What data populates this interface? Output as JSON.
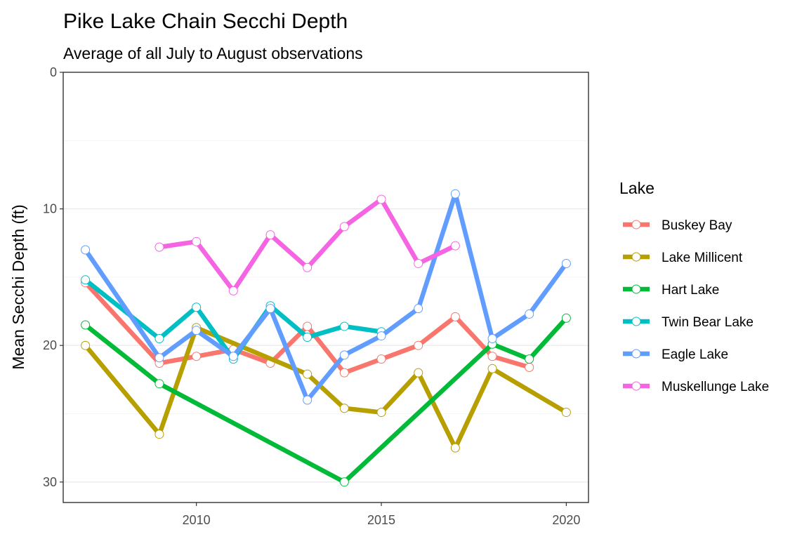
{
  "chart_data": {
    "type": "line",
    "title": "Pike Lake Chain Secchi Depth",
    "subtitle": "Average of all July to August observations",
    "xlabel": "",
    "ylabel": "Mean Secchi Depth (ft)",
    "xlim": [
      2006.4,
      2020.6
    ],
    "ylim": [
      0,
      31.5
    ],
    "y_reversed": true,
    "x_ticks": [
      2010,
      2015,
      2020
    ],
    "y_ticks": [
      0,
      10,
      20,
      30
    ],
    "grid": true,
    "legend_title": "Lake",
    "legend_position": "right",
    "series": [
      {
        "name": "Buskey Bay",
        "color": "#F8766D",
        "points": [
          [
            2007,
            15.4
          ],
          [
            2009,
            21.3
          ],
          [
            2010,
            20.8
          ],
          [
            2011,
            20.3
          ],
          [
            2012,
            21.3
          ],
          [
            2013,
            18.6
          ],
          [
            2014,
            22.0
          ],
          [
            2015,
            21.0
          ],
          [
            2016,
            20.0
          ],
          [
            2017,
            17.9
          ],
          [
            2018,
            20.8
          ],
          [
            2019,
            21.6
          ]
        ]
      },
      {
        "name": "Lake Millicent",
        "color": "#B79F00",
        "points": [
          [
            2007,
            20.0
          ],
          [
            2009,
            26.5
          ],
          [
            2010,
            18.7
          ],
          [
            2013,
            22.1
          ],
          [
            2014,
            24.6
          ],
          [
            2015,
            24.9
          ],
          [
            2016,
            22.0
          ],
          [
            2017,
            27.5
          ],
          [
            2018,
            21.7
          ],
          [
            2020,
            24.9
          ]
        ]
      },
      {
        "name": "Hart Lake",
        "color": "#00BA38",
        "points": [
          [
            2007,
            18.5
          ],
          [
            2009,
            22.8
          ],
          [
            2014,
            30.0
          ],
          [
            2018,
            19.9
          ],
          [
            2019,
            21.0
          ],
          [
            2020,
            18.0
          ]
        ]
      },
      {
        "name": "Twin Bear Lake",
        "color": "#00BFC4",
        "points": [
          [
            2007,
            15.2
          ],
          [
            2009,
            19.5
          ],
          [
            2010,
            17.2
          ],
          [
            2011,
            21.0
          ],
          [
            2012,
            17.1
          ],
          [
            2013,
            19.4
          ],
          [
            2014,
            18.6
          ],
          [
            2015,
            19.0
          ]
        ]
      },
      {
        "name": "Eagle Lake",
        "color": "#619CFF",
        "points": [
          [
            2007,
            13.0
          ],
          [
            2009,
            20.9
          ],
          [
            2010,
            18.9
          ],
          [
            2011,
            20.8
          ],
          [
            2012,
            17.3
          ],
          [
            2013,
            24.0
          ],
          [
            2014,
            20.7
          ],
          [
            2015,
            19.3
          ],
          [
            2016,
            17.3
          ],
          [
            2017,
            8.9
          ],
          [
            2018,
            19.5
          ],
          [
            2019,
            17.7
          ],
          [
            2020,
            14.0
          ]
        ]
      },
      {
        "name": "Muskellunge Lake",
        "color": "#F564E3",
        "points": [
          [
            2009,
            12.8
          ],
          [
            2010,
            12.4
          ],
          [
            2011,
            16.0
          ],
          [
            2012,
            11.9
          ],
          [
            2013,
            14.3
          ],
          [
            2014,
            11.3
          ],
          [
            2015,
            9.3
          ],
          [
            2016,
            14.0
          ],
          [
            2017,
            12.7
          ]
        ]
      }
    ]
  }
}
